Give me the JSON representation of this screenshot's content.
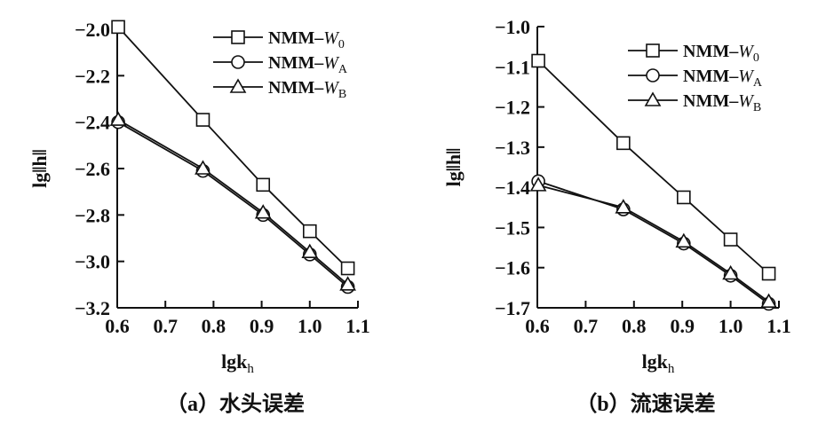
{
  "chart_data": [
    {
      "type": "line",
      "title": "",
      "caption": "（a）水头误差",
      "xlabel": "lgk",
      "xlabel_sub": "h",
      "ylabel": "lg‖h‖",
      "xlim": [
        0.6,
        1.1
      ],
      "ylim": [
        -3.2,
        -2.0
      ],
      "xticks": [
        "0.6",
        "0.7",
        "0.8",
        "0.9",
        "1.0",
        "1.1"
      ],
      "yticks": [
        "-2.0",
        "-2.2",
        "-2.4",
        "-2.6",
        "-2.8",
        "-3.0",
        "-3.2"
      ],
      "legend_position": "top-right",
      "x": [
        0.602,
        0.778,
        0.903,
        1.0,
        1.079
      ],
      "series": [
        {
          "name": "NMM-W",
          "sub": "0",
          "marker": "square",
          "values": [
            -1.99,
            -2.39,
            -2.67,
            -2.87,
            -3.03
          ]
        },
        {
          "name": "NMM-W",
          "sub": "A",
          "marker": "circle",
          "values": [
            -2.4,
            -2.61,
            -2.8,
            -2.97,
            -3.11
          ]
        },
        {
          "name": "NMM-W",
          "sub": "B",
          "marker": "triangle",
          "values": [
            -2.39,
            -2.6,
            -2.79,
            -2.96,
            -3.1
          ]
        }
      ]
    },
    {
      "type": "line",
      "title": "",
      "caption": "（b）流速误差",
      "xlabel": "lgk",
      "xlabel_sub": "h",
      "ylabel": "lg‖h‖",
      "xlim": [
        0.6,
        1.1
      ],
      "ylim": [
        -1.7,
        -1.0
      ],
      "xticks": [
        "0.6",
        "0.7",
        "0.8",
        "0.9",
        "1.0",
        "1.1"
      ],
      "yticks": [
        "-1.0",
        "-1.1",
        "-1.2",
        "-1.3",
        "-1.4",
        "-1.5",
        "-1.6",
        "-1.7"
      ],
      "legend_position": "top-right",
      "x": [
        0.602,
        0.778,
        0.903,
        1.0,
        1.079
      ],
      "series": [
        {
          "name": "NMM-W",
          "sub": "0",
          "marker": "square",
          "values": [
            -1.085,
            -1.29,
            -1.425,
            -1.53,
            -1.615
          ]
        },
        {
          "name": "NMM-W",
          "sub": "A",
          "marker": "circle",
          "values": [
            -1.385,
            -1.455,
            -1.54,
            -1.62,
            -1.69
          ]
        },
        {
          "name": "NMM-W",
          "sub": "B",
          "marker": "triangle",
          "values": [
            -1.395,
            -1.45,
            -1.535,
            -1.615,
            -1.685
          ]
        }
      ]
    }
  ]
}
